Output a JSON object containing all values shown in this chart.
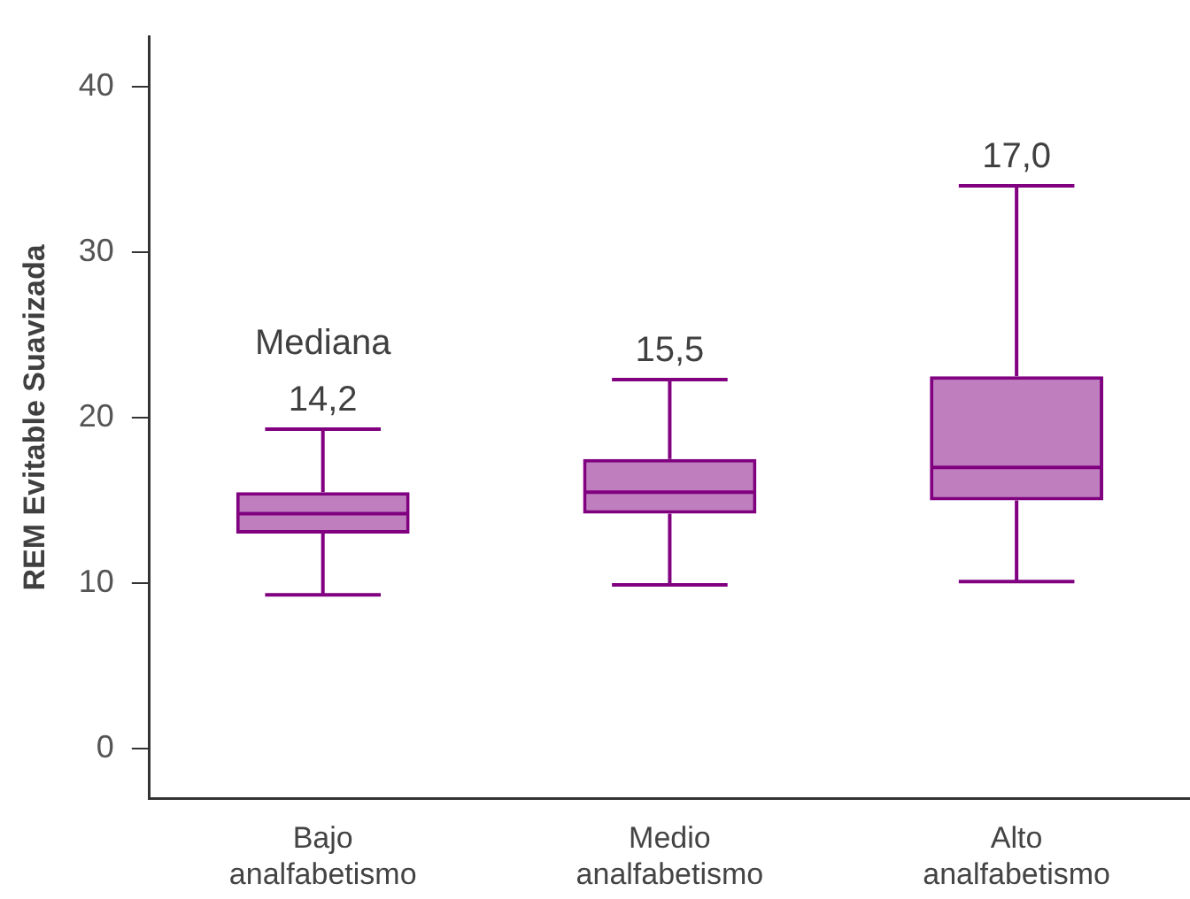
{
  "chart_data": {
    "type": "box",
    "ylabel": "REM Evitable Suavizada",
    "categories": [
      "Bajo analfabetismo",
      "Medio analfabetismo",
      "Alto analfabetismo"
    ],
    "boxes": [
      {
        "low": 9.3,
        "q1": 13.0,
        "median": 14.2,
        "q3": 15.5,
        "high": 19.3
      },
      {
        "low": 9.9,
        "q1": 14.2,
        "median": 15.5,
        "q3": 17.5,
        "high": 22.3
      },
      {
        "low": 10.1,
        "q1": 15.0,
        "median": 17.0,
        "q3": 22.5,
        "high": 34.0
      }
    ],
    "color": "#800080",
    "ylim": [
      -3,
      43
    ],
    "yticks": [
      0,
      10,
      20,
      30,
      40
    ],
    "grid": false,
    "legend": false,
    "annotations": [
      "Mediana",
      "14,2",
      "15,5",
      "17,0"
    ]
  }
}
